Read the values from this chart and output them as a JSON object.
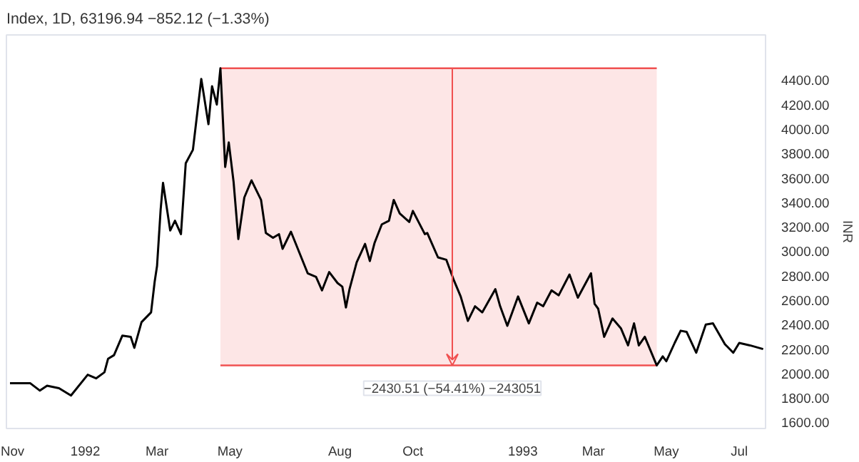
{
  "chart_data": {
    "type": "line",
    "title": "Index, 1D, 63196.94 −852.12 (−1.33%)",
    "ylabel": "INR",
    "x": [
      "1991-10-30",
      "1991-11-16",
      "1991-11-24",
      "1991-11-30",
      "1991-12-10",
      "1991-12-20",
      "1992-01-03",
      "1992-01-10",
      "1992-01-17",
      "1992-01-20",
      "1992-01-25",
      "1992-02-01",
      "1992-02-08",
      "1992-02-11",
      "1992-02-17",
      "1992-02-25",
      "1992-02-28",
      "1992-03-01",
      "1992-03-04",
      "1992-03-06",
      "1992-03-12",
      "1992-03-16",
      "1992-03-21",
      "1992-03-25",
      "1992-03-31",
      "1992-04-07",
      "1992-04-13",
      "1992-04-16",
      "1992-04-20",
      "1992-04-23",
      "1992-04-27",
      "1992-04-30",
      "1992-05-04",
      "1992-05-08",
      "1992-05-13",
      "1992-05-19",
      "1992-05-27",
      "1992-05-31",
      "1992-06-06",
      "1992-06-11",
      "1992-06-14",
      "1992-06-21",
      "1992-07-05",
      "1992-07-12",
      "1992-07-17",
      "1992-07-23",
      "1992-07-30",
      "1992-08-03",
      "1992-08-06",
      "1992-08-09",
      "1992-08-15",
      "1992-08-22",
      "1992-08-26",
      "1992-08-30",
      "1992-09-05",
      "1992-09-11",
      "1992-09-15",
      "1992-09-20",
      "1992-09-28",
      "1992-10-01",
      "1992-10-11",
      "1992-10-13",
      "1992-10-22",
      "1992-10-29",
      "1992-11-04",
      "1992-11-10",
      "1992-11-16",
      "1992-11-22",
      "1992-11-28",
      "1992-12-09",
      "1992-12-13",
      "1992-12-19",
      "1992-12-28",
      "1993-01-06",
      "1993-01-13",
      "1993-01-18",
      "1993-01-25",
      "1993-01-31",
      "1993-02-09",
      "1993-02-16",
      "1993-02-27",
      "1993-03-02",
      "1993-03-05",
      "1993-03-10",
      "1993-03-17",
      "1993-03-24",
      "1993-03-30",
      "1993-04-04",
      "1993-04-08",
      "1993-04-13",
      "1993-04-23",
      "1993-04-28",
      "1993-05-01",
      "1993-05-08",
      "1993-05-13",
      "1993-05-18",
      "1993-05-26",
      "1993-06-03",
      "1993-06-09",
      "1993-06-19",
      "1993-06-26",
      "1993-07-01",
      "1993-07-10",
      "1993-07-21"
    ],
    "series": [
      {
        "color": "#000000",
        "values": [
          1920,
          1920,
          1860,
          1900,
          1880,
          1820,
          1990,
          1960,
          2010,
          2120,
          2150,
          2310,
          2300,
          2210,
          2420,
          2500,
          2750,
          2880,
          3340,
          3560,
          3170,
          3250,
          3140,
          3720,
          3830,
          4410,
          4040,
          4350,
          4200,
          4497,
          3690,
          3890,
          3570,
          3100,
          3440,
          3580,
          3420,
          3150,
          3110,
          3140,
          3020,
          3160,
          2820,
          2790,
          2680,
          2830,
          2740,
          2710,
          2540,
          2690,
          2910,
          3060,
          2920,
          3070,
          3220,
          3250,
          3420,
          3310,
          3240,
          3330,
          3140,
          3150,
          2950,
          2930,
          2770,
          2630,
          2430,
          2550,
          2500,
          2690,
          2550,
          2390,
          2630,
          2410,
          2580,
          2550,
          2680,
          2640,
          2810,
          2620,
          2820,
          2570,
          2530,
          2300,
          2450,
          2370,
          2230,
          2410,
          2230,
          2300,
          2066,
          2140,
          2100,
          2250,
          2350,
          2340,
          2170,
          2400,
          2410,
          2240,
          2170,
          2250,
          2230,
          2200
        ]
      }
    ],
    "xlim": [
      "1991-10-27",
      "1993-07-23"
    ],
    "xticks": [
      {
        "value": "1991-11-01",
        "label": "Nov"
      },
      {
        "value": "1992-01-01",
        "label": "1992"
      },
      {
        "value": "1992-03-01",
        "label": "Mar"
      },
      {
        "value": "1992-05-01",
        "label": "May"
      },
      {
        "value": "1992-08-01",
        "label": "Aug"
      },
      {
        "value": "1992-10-01",
        "label": "Oct"
      },
      {
        "value": "1993-01-01",
        "label": "1993"
      },
      {
        "value": "1993-03-01",
        "label": "Mar"
      },
      {
        "value": "1993-05-01",
        "label": "May"
      },
      {
        "value": "1993-07-01",
        "label": "Jul"
      }
    ],
    "ylim": [
      1550,
      4770
    ],
    "yticks": [
      {
        "value": 1600,
        "label": "1600.00"
      },
      {
        "value": 1800,
        "label": "1800.00"
      },
      {
        "value": 2000,
        "label": "2000.00"
      },
      {
        "value": 2200,
        "label": "2200.00"
      },
      {
        "value": 2400,
        "label": "2400.00"
      },
      {
        "value": 2600,
        "label": "2600.00"
      },
      {
        "value": 2800,
        "label": "2800.00"
      },
      {
        "value": 3000,
        "label": "3000.00"
      },
      {
        "value": 3200,
        "label": "3200.00"
      },
      {
        "value": 3400,
        "label": "3400.00"
      },
      {
        "value": 3600,
        "label": "3600.00"
      },
      {
        "value": 3800,
        "label": "3800.00"
      },
      {
        "value": 4000,
        "label": "4000.00"
      },
      {
        "value": 4200,
        "label": "4200.00"
      },
      {
        "value": 4400,
        "label": "4400.00"
      }
    ],
    "bands": [
      {
        "axis": "x",
        "from": "1992-04-23",
        "to": "1993-04-23",
        "color": "#fde6e6"
      }
    ],
    "ref_lines": [
      {
        "axis": "y",
        "value": 4497,
        "color": "#f05050"
      },
      {
        "axis": "y",
        "value": 2066,
        "color": "#f05050"
      }
    ],
    "annotations": [
      {
        "text": "−2430.51 (−54.41%) −243051",
        "x": "1992-11-03",
        "y": 2066
      }
    ],
    "grid": false,
    "line_style": "solid",
    "marker": "none"
  }
}
